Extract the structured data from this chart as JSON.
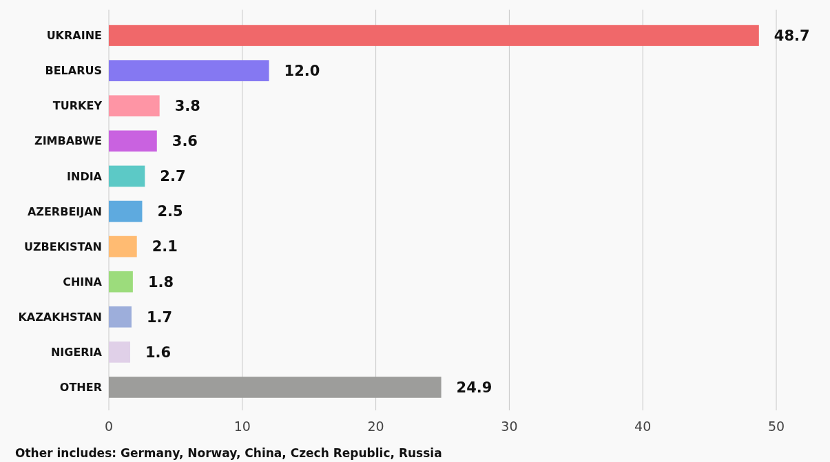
{
  "chart_data": {
    "type": "bar",
    "orientation": "horizontal",
    "categories": [
      "UKRAINE",
      "BELARUS",
      "TURKEY",
      "ZIMBABWE",
      "INDIA",
      "AZERBEIJAN",
      "UZBEKISTAN",
      "CHINA",
      "KAZAKHSTAN",
      "NIGERIA",
      "OTHER"
    ],
    "values": [
      48.7,
      12.0,
      3.8,
      3.6,
      2.7,
      2.5,
      2.1,
      1.8,
      1.7,
      1.6,
      24.9
    ],
    "value_labels": [
      "48.7",
      "12.0",
      "3.8",
      "3.6",
      "2.7",
      "2.5",
      "2.1",
      "1.8",
      "1.7",
      "1.6",
      "24.9"
    ],
    "colors": [
      "#f0686a",
      "#8578f2",
      "#fe95a5",
      "#c962e0",
      "#5cc9c6",
      "#5eaadf",
      "#ffbb72",
      "#9cdc7c",
      "#9daedb",
      "#e0d0e8",
      "#9d9d9b"
    ],
    "xlim": [
      0,
      50
    ],
    "xticks": [
      0,
      10,
      20,
      30,
      40,
      50
    ],
    "grid": "x",
    "annotations": [
      "Other includes: Germany, Norway, China, Czech Republic, Russia"
    ]
  }
}
